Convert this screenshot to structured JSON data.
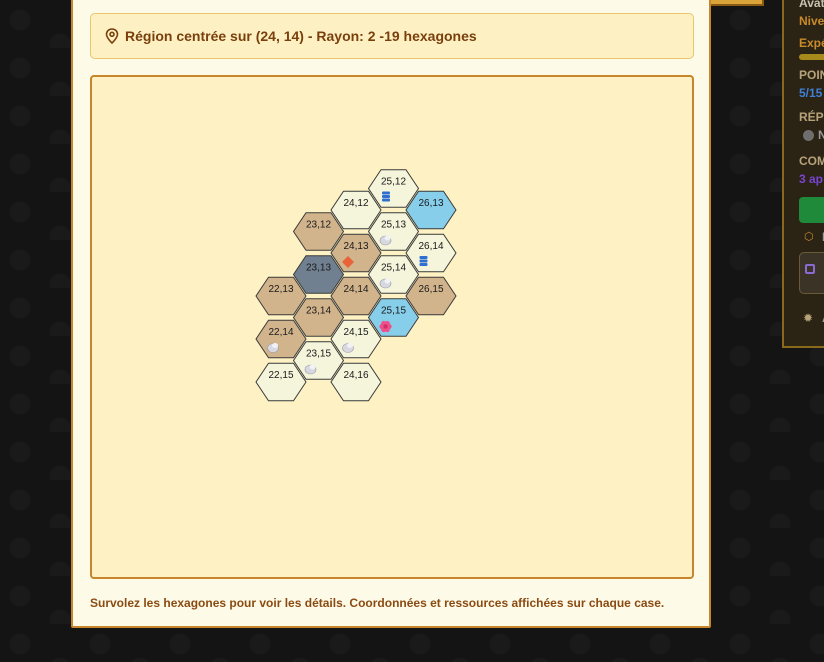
{
  "region": {
    "title": "Région centrée sur (24, 14) - Rayon: 2 -19 hexagones"
  },
  "hint": "Survolez les hexagones pour voir les détails. Coordonnées et ressources affichées sur chaque case.",
  "colors": {
    "desert": "#d2b48c",
    "plain": "#f5f5dc",
    "mountain": "#708090",
    "water": "#87ceeb",
    "stroke": "#3a3a3a"
  },
  "hexes": [
    {
      "q": 23,
      "r": 12,
      "label": "23,12",
      "terrain": "desert",
      "resource": ""
    },
    {
      "q": 24,
      "r": 12,
      "label": "24,12",
      "terrain": "plain",
      "resource": ""
    },
    {
      "q": 23,
      "r": 13,
      "label": "23,13",
      "terrain": "mountain",
      "resource": ""
    },
    {
      "q": 25,
      "r": 12,
      "label": "25,12",
      "terrain": "plain",
      "resource": "blue-stack"
    },
    {
      "q": 22,
      "r": 13,
      "label": "22,13",
      "terrain": "desert",
      "resource": ""
    },
    {
      "q": 24,
      "r": 13,
      "label": "24,13",
      "terrain": "desert",
      "resource": "orange-gem"
    },
    {
      "q": 26,
      "r": 13,
      "label": "26,13",
      "terrain": "water",
      "resource": ""
    },
    {
      "q": 23,
      "r": 14,
      "label": "23,14",
      "terrain": "desert",
      "resource": ""
    },
    {
      "q": 25,
      "r": 13,
      "label": "25,13",
      "terrain": "plain",
      "resource": "stone"
    },
    {
      "q": 22,
      "r": 14,
      "label": "22,14",
      "terrain": "desert",
      "resource": "stone"
    },
    {
      "q": 24,
      "r": 14,
      "label": "24,14",
      "terrain": "desert",
      "resource": ""
    },
    {
      "q": 26,
      "r": 14,
      "label": "26,14",
      "terrain": "plain",
      "resource": "blue-stack"
    },
    {
      "q": 23,
      "r": 15,
      "label": "23,15",
      "terrain": "plain",
      "resource": "stone"
    },
    {
      "q": 25,
      "r": 14,
      "label": "25,14",
      "terrain": "plain",
      "resource": "stone"
    },
    {
      "q": 22,
      "r": 15,
      "label": "22,15",
      "terrain": "plain",
      "resource": ""
    },
    {
      "q": 24,
      "r": 15,
      "label": "24,15",
      "terrain": "plain",
      "resource": "stone"
    },
    {
      "q": 26,
      "r": 15,
      "label": "26,15",
      "terrain": "desert",
      "resource": ""
    },
    {
      "q": 25,
      "r": 15,
      "label": "25,15",
      "terrain": "water",
      "resource": "pink-flower"
    },
    {
      "q": 24,
      "r": 16,
      "label": "24,16",
      "terrain": "plain",
      "resource": ""
    }
  ],
  "side_panel": {
    "avatar_label": "Avat",
    "level_label": "Nive",
    "experience_label": "Expé",
    "points_label": "POIN",
    "points_value": "5/15",
    "reputation_label": "RÉPU",
    "reputation_value": "N",
    "community_label": "COM",
    "community_value": "3 ap",
    "inventory_label": "I",
    "settings_label": "A"
  }
}
